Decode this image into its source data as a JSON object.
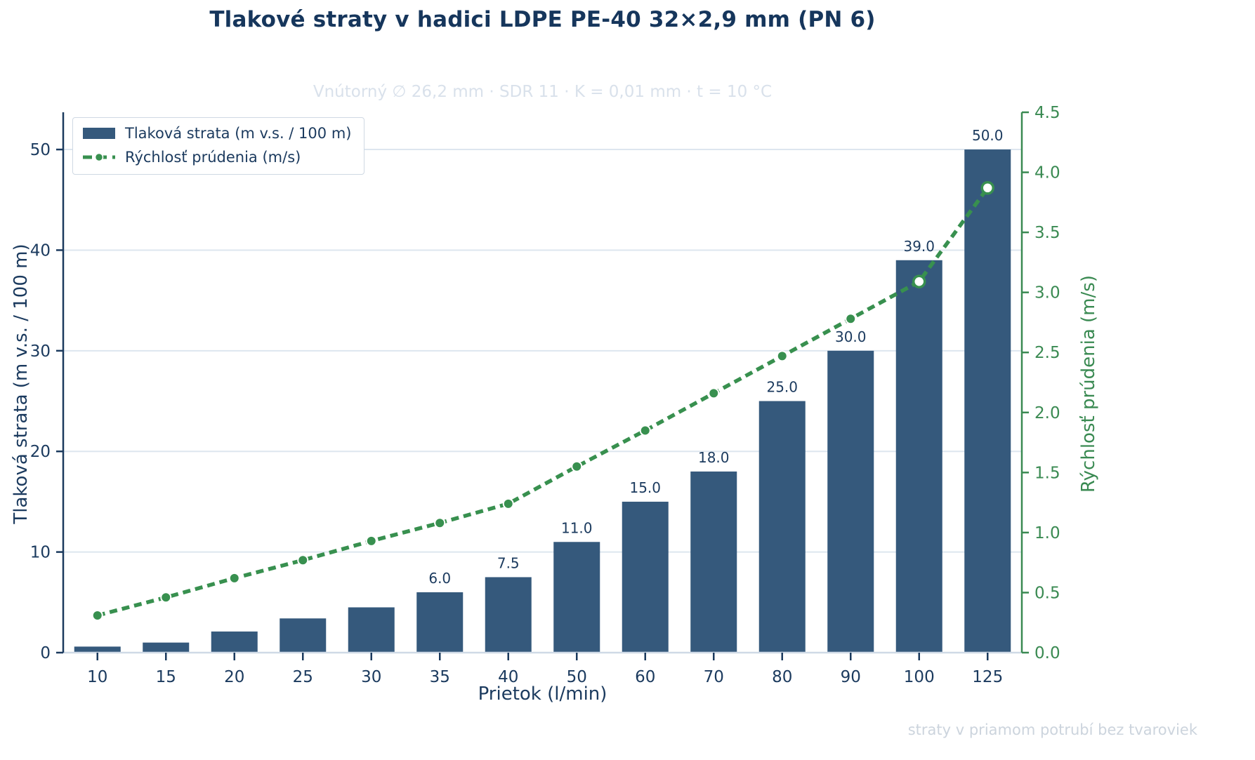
{
  "title": "Tlakové straty v hadici LDPE PE-40 32×2,9 mm (PN 6)",
  "subtitle": "Vnútorný ∅ 26,2 mm · SDR 11 · K = 0,01 mm · t = 10 °C",
  "footer": "straty v priamom potrubí bez tvaroviek",
  "style": {
    "navy_text": "#1b3a5e",
    "title_color": "#16365c",
    "bar_color": "#35597c",
    "line_color": "#38904f",
    "green_text": "#3a8a52",
    "grid_color": "#dde6ef",
    "bottom_spine": "#cfdae6",
    "subtitle_color": "#d9e1eb",
    "footer_color": "#ccd4dd",
    "marker_edge": "#ffffff"
  },
  "chart_data": {
    "type": "bar",
    "categories": [
      10,
      15,
      20,
      25,
      30,
      35,
      40,
      50,
      60,
      70,
      80,
      90,
      100,
      125
    ],
    "series": [
      {
        "name": "Tlaková strata (m v.s. / 100 m)",
        "type": "bar",
        "axis": "left",
        "color": "#35597c",
        "values": [
          0.6,
          1.0,
          2.1,
          3.4,
          4.5,
          6.0,
          7.5,
          11.0,
          15.0,
          18.0,
          25.0,
          30.0,
          39.0,
          50.0
        ],
        "bar_labels": [
          null,
          null,
          null,
          null,
          null,
          "6.0",
          "7.5",
          "11.0",
          "15.0",
          "18.0",
          "25.0",
          "30.0",
          "39.0",
          "50.0"
        ]
      },
      {
        "name": "Rýchlosť prúdenia (m/s)",
        "type": "line",
        "axis": "right",
        "color": "#38904f",
        "values": [
          0.31,
          0.46,
          0.62,
          0.77,
          0.93,
          1.08,
          1.24,
          1.55,
          1.85,
          2.16,
          2.47,
          2.78,
          3.09,
          3.87
        ],
        "hollow_marker_indices": [
          12,
          13
        ]
      }
    ],
    "title": "Tlakové straty v hadici LDPE PE-40 32×2,9 mm (PN 6)",
    "xlabel": "Prietok (l/min)",
    "ylabel_left": "Tlaková strata (m v.s. / 100 m)",
    "ylabel_right": "Rýchlosť prúdenia (m/s)",
    "yticks_left": [
      0,
      10,
      20,
      30,
      40,
      50
    ],
    "yticks_right": [
      0.0,
      0.5,
      1.0,
      1.5,
      2.0,
      2.5,
      3.0,
      3.5,
      4.0,
      4.5
    ],
    "ylim_left": [
      0,
      53.7
    ],
    "ylim_right": [
      0,
      4.5
    ],
    "grid": true,
    "legend_position": "upper left"
  }
}
